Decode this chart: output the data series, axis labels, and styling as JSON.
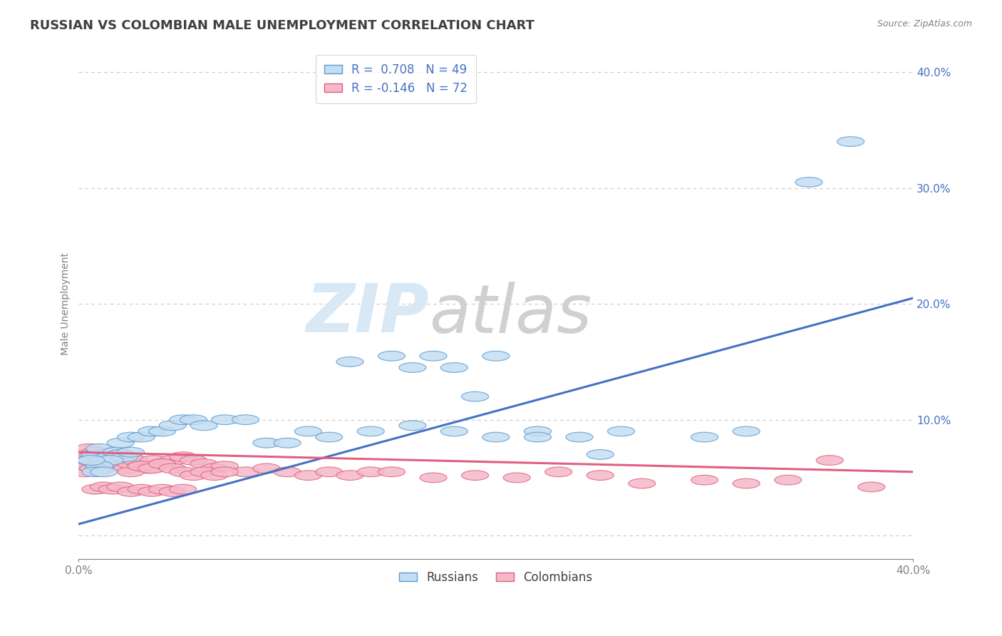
{
  "title": "RUSSIAN VS COLOMBIAN MALE UNEMPLOYMENT CORRELATION CHART",
  "source": "Source: ZipAtlas.com",
  "ylabel": "Male Unemployment",
  "watermark_zip": "ZIP",
  "watermark_atlas": "atlas",
  "xmin": 0.0,
  "xmax": 0.4,
  "ymin": -0.02,
  "ymax": 0.42,
  "yticks": [
    0.0,
    0.1,
    0.2,
    0.3,
    0.4
  ],
  "ytick_labels": [
    "",
    "10.0%",
    "20.0%",
    "30.0%",
    "40.0%"
  ],
  "russians_color_face": "#c5ddf0",
  "russians_color_edge": "#5b9bd5",
  "colombians_color_face": "#f4b8c8",
  "colombians_color_edge": "#e06080",
  "blue_line_color": "#4472c4",
  "pink_line_color": "#e06080",
  "title_color": "#404040",
  "axis_color": "#808080",
  "grid_color": "#c8c8c8",
  "watermark_zip_color": "#d8e8f4",
  "watermark_atlas_color": "#d0d0d0",
  "background_color": "#ffffff",
  "russians": {
    "x": [
      0.005,
      0.008,
      0.01,
      0.012,
      0.015,
      0.018,
      0.02,
      0.022,
      0.025,
      0.015,
      0.01,
      0.008,
      0.006,
      0.012,
      0.02,
      0.025,
      0.03,
      0.035,
      0.04,
      0.045,
      0.05,
      0.055,
      0.06,
      0.07,
      0.08,
      0.09,
      0.1,
      0.11,
      0.12,
      0.14,
      0.16,
      0.18,
      0.2,
      0.22,
      0.24,
      0.26,
      0.16,
      0.18,
      0.2,
      0.13,
      0.15,
      0.17,
      0.19,
      0.22,
      0.25,
      0.3,
      0.32,
      0.35,
      0.37
    ],
    "y": [
      0.065,
      0.07,
      0.075,
      0.065,
      0.068,
      0.072,
      0.07,
      0.068,
      0.072,
      0.065,
      0.06,
      0.055,
      0.065,
      0.055,
      0.08,
      0.085,
      0.085,
      0.09,
      0.09,
      0.095,
      0.1,
      0.1,
      0.095,
      0.1,
      0.1,
      0.08,
      0.08,
      0.09,
      0.085,
      0.09,
      0.095,
      0.09,
      0.085,
      0.09,
      0.085,
      0.09,
      0.145,
      0.145,
      0.155,
      0.15,
      0.155,
      0.155,
      0.12,
      0.085,
      0.07,
      0.085,
      0.09,
      0.305,
      0.34
    ]
  },
  "colombians": {
    "x": [
      0.003,
      0.005,
      0.006,
      0.008,
      0.01,
      0.012,
      0.014,
      0.016,
      0.018,
      0.02,
      0.003,
      0.005,
      0.007,
      0.009,
      0.011,
      0.013,
      0.015,
      0.017,
      0.019,
      0.021,
      0.023,
      0.025,
      0.027,
      0.03,
      0.033,
      0.036,
      0.04,
      0.045,
      0.05,
      0.055,
      0.06,
      0.065,
      0.07,
      0.08,
      0.09,
      0.1,
      0.11,
      0.12,
      0.13,
      0.14,
      0.025,
      0.03,
      0.035,
      0.04,
      0.045,
      0.05,
      0.055,
      0.06,
      0.065,
      0.07,
      0.15,
      0.17,
      0.19,
      0.21,
      0.23,
      0.25,
      0.27,
      0.3,
      0.32,
      0.34,
      0.008,
      0.012,
      0.016,
      0.02,
      0.025,
      0.03,
      0.035,
      0.04,
      0.045,
      0.05,
      0.36,
      0.38
    ],
    "y": [
      0.07,
      0.075,
      0.068,
      0.072,
      0.07,
      0.065,
      0.068,
      0.072,
      0.065,
      0.07,
      0.055,
      0.06,
      0.058,
      0.062,
      0.058,
      0.065,
      0.062,
      0.068,
      0.065,
      0.06,
      0.058,
      0.062,
      0.065,
      0.06,
      0.058,
      0.065,
      0.062,
      0.065,
      0.068,
      0.065,
      0.062,
      0.058,
      0.06,
      0.055,
      0.058,
      0.055,
      0.052,
      0.055,
      0.052,
      0.055,
      0.055,
      0.06,
      0.058,
      0.062,
      0.058,
      0.055,
      0.052,
      0.055,
      0.052,
      0.055,
      0.055,
      0.05,
      0.052,
      0.05,
      0.055,
      0.052,
      0.045,
      0.048,
      0.045,
      0.048,
      0.04,
      0.042,
      0.04,
      0.042,
      0.038,
      0.04,
      0.038,
      0.04,
      0.038,
      0.04,
      0.065,
      0.042
    ]
  },
  "blue_line": {
    "x0": 0.0,
    "y0": 0.01,
    "x1": 0.4,
    "y1": 0.205
  },
  "pink_line": {
    "x0": 0.0,
    "y0": 0.072,
    "x1": 0.4,
    "y1": 0.055
  }
}
